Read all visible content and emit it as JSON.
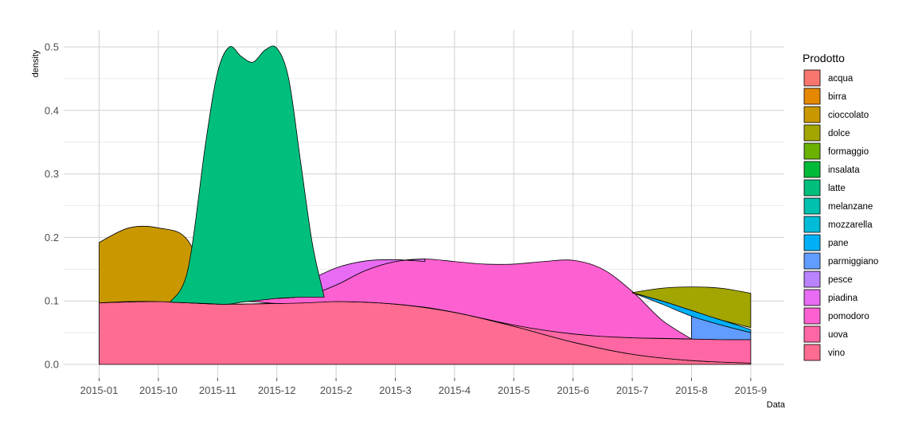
{
  "chart_data": {
    "type": "area",
    "subtype": "stacked density",
    "title": "",
    "xlabel": "Data",
    "ylabel": "density",
    "ylim": [
      0,
      0.52
    ],
    "yticks": [
      0.0,
      0.1,
      0.2,
      0.3,
      0.4,
      0.5
    ],
    "ytick_labels": [
      "0.0",
      "0.1",
      "0.2",
      "0.3",
      "0.4",
      "0.5"
    ],
    "categories": [
      "2015-01",
      "2015-10",
      "2015-11",
      "2015-12",
      "2015-2",
      "2015-3",
      "2015-4",
      "2015-5",
      "2015-6",
      "2015-7",
      "2015-8",
      "2015-9"
    ],
    "grid": true,
    "legend": {
      "title": "Prodotto",
      "position": "right",
      "entries": [
        {
          "name": "acqua",
          "color": "#F8766D"
        },
        {
          "name": "birra",
          "color": "#E58700"
        },
        {
          "name": "cioccolato",
          "color": "#C99800"
        },
        {
          "name": "dolce",
          "color": "#A3A500"
        },
        {
          "name": "formaggio",
          "color": "#6BB100"
        },
        {
          "name": "insalata",
          "color": "#00BA38"
        },
        {
          "name": "latte",
          "color": "#00BF7D"
        },
        {
          "name": "melanzane",
          "color": "#00C0AF"
        },
        {
          "name": "mozzarella",
          "color": "#00BCD8"
        },
        {
          "name": "pane",
          "color": "#00B0F6"
        },
        {
          "name": "parmiggiano",
          "color": "#619CFF"
        },
        {
          "name": "pesce",
          "color": "#B983FF"
        },
        {
          "name": "piadina",
          "color": "#E76BF3"
        },
        {
          "name": "pomodoro",
          "color": "#FD61D1"
        },
        {
          "name": "uova",
          "color": "#FF67A4"
        },
        {
          "name": "vino",
          "color": "#FF6C91"
        }
      ]
    },
    "series": [
      {
        "name": "vino",
        "color": "#FF6C91",
        "x": [
          1.0,
          2.0,
          3.0,
          4.0,
          5.0,
          6.0,
          7.0,
          8.0,
          9.0,
          10.0,
          11.0,
          12.0
        ],
        "top": [
          0.097,
          0.099,
          0.095,
          0.096,
          0.099,
          0.095,
          0.082,
          0.06,
          0.035,
          0.016,
          0.006,
          0.002
        ],
        "bottom": [
          0,
          0,
          0,
          0,
          0,
          0,
          0,
          0,
          0,
          0,
          0,
          0
        ]
      },
      {
        "name": "uova",
        "color": "#FF67A4",
        "x": [
          1.0,
          2.0,
          3.0,
          4.0,
          5.0,
          6.0,
          7.0,
          8.0,
          9.0,
          10.0,
          11.0,
          12.0
        ],
        "top": [
          0.097,
          0.099,
          0.095,
          0.096,
          0.099,
          0.095,
          0.082,
          0.062,
          0.048,
          0.042,
          0.04,
          0.039
        ],
        "bottom": [
          0.097,
          0.099,
          0.095,
          0.096,
          0.099,
          0.095,
          0.082,
          0.06,
          0.035,
          0.016,
          0.006,
          0.002
        ]
      },
      {
        "name": "pomodoro",
        "color": "#FD61D1",
        "x": [
          3.0,
          3.5,
          4.0,
          4.5,
          5.0,
          5.5,
          6.0,
          6.5,
          7.0,
          7.5,
          8.0,
          8.5,
          9.0,
          9.5,
          10.0,
          10.5,
          11.0
        ],
        "top": [
          0.095,
          0.1,
          0.104,
          0.108,
          0.125,
          0.148,
          0.162,
          0.166,
          0.162,
          0.158,
          0.158,
          0.162,
          0.164,
          0.15,
          0.115,
          0.07,
          0.04
        ],
        "bottom": [
          0.095,
          0.099,
          0.096,
          0.097,
          0.099,
          0.098,
          0.095,
          0.09,
          0.082,
          0.072,
          0.062,
          0.054,
          0.048,
          0.044,
          0.042,
          0.041,
          0.04
        ]
      },
      {
        "name": "piadina",
        "color": "#E76BF3",
        "x": [
          4.0,
          4.5,
          5.0,
          5.5,
          6.0,
          6.5
        ],
        "top": [
          0.105,
          0.13,
          0.152,
          0.163,
          0.165,
          0.162
        ],
        "bottom": [
          0.104,
          0.108,
          0.125,
          0.148,
          0.162,
          0.166
        ]
      },
      {
        "name": "pesce",
        "color": "#619CFF",
        "x": [
          11.0,
          11.5,
          12.0
        ],
        "top": [
          0.076,
          0.062,
          0.05
        ],
        "bottom": [
          0.04,
          0.039,
          0.039
        ]
      },
      {
        "name": "pane",
        "color": "#00B0F6",
        "x": [
          10.0,
          10.5,
          11.0,
          11.5,
          12.0
        ],
        "top": [
          0.113,
          0.1,
          0.085,
          0.07,
          0.055
        ],
        "bottom": [
          0.113,
          0.095,
          0.076,
          0.062,
          0.05
        ]
      },
      {
        "name": "dolce",
        "color": "#A3A500",
        "x": [
          10.0,
          10.5,
          11.0,
          11.5,
          12.0
        ],
        "top": [
          0.113,
          0.12,
          0.122,
          0.12,
          0.112
        ],
        "bottom": [
          0.113,
          0.1,
          0.085,
          0.07,
          0.058
        ]
      },
      {
        "name": "cioccolato",
        "color": "#C99800",
        "x": [
          1.0,
          1.5,
          2.0,
          2.5,
          2.9
        ],
        "top": [
          0.192,
          0.215,
          0.215,
          0.195,
          0.1
        ],
        "bottom": [
          0.097,
          0.099,
          0.099,
          0.097,
          0.096
        ]
      },
      {
        "name": "latte",
        "color": "#00BF7D",
        "x": [
          2.2,
          2.5,
          2.8,
          3.0,
          3.2,
          3.4,
          3.6,
          3.8,
          4.0,
          4.2,
          4.4,
          4.6,
          4.8
        ],
        "top": [
          0.098,
          0.15,
          0.35,
          0.46,
          0.5,
          0.485,
          0.476,
          0.495,
          0.498,
          0.45,
          0.32,
          0.19,
          0.106
        ],
        "bottom": [
          0.098,
          0.097,
          0.096,
          0.095,
          0.095,
          0.098,
          0.1,
          0.102,
          0.104,
          0.105,
          0.106,
          0.106,
          0.106
        ]
      }
    ]
  }
}
